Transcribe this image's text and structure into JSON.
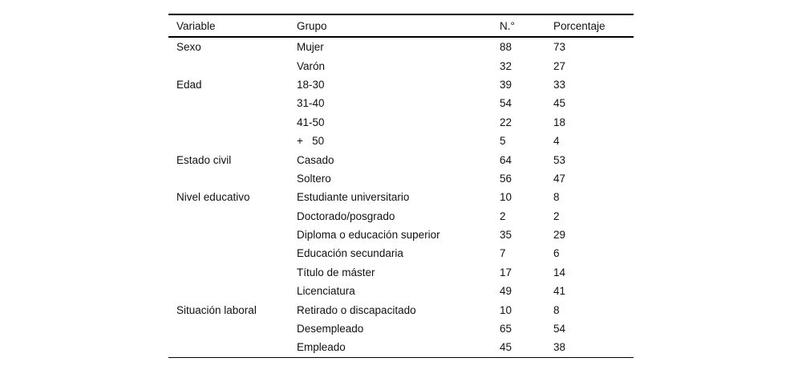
{
  "table": {
    "columns": [
      "Variable",
      "Grupo",
      "N.°",
      "Porcentaje"
    ],
    "column_keys": [
      "variable",
      "grupo",
      "n",
      "porcentaje"
    ],
    "rows": [
      [
        "Sexo",
        "Mujer",
        "88",
        "73"
      ],
      [
        "",
        "Varón",
        "32",
        "27"
      ],
      [
        "Edad",
        "18-30",
        "39",
        "33"
      ],
      [
        "",
        "31-40",
        "54",
        "45"
      ],
      [
        "",
        "41-50",
        "22",
        "18"
      ],
      [
        "",
        "+   50",
        "5",
        "4"
      ],
      [
        "Estado civil",
        "Casado",
        "64",
        "53"
      ],
      [
        "",
        "Soltero",
        "56",
        "47"
      ],
      [
        "Nivel educativo",
        "Estudiante universitario",
        "10",
        "8"
      ],
      [
        "",
        "Doctorado/posgrado",
        "2",
        "2"
      ],
      [
        "",
        "Diploma o educación superior",
        "35",
        "29"
      ],
      [
        "",
        "Educación secundaria",
        "7",
        "6"
      ],
      [
        "",
        "Título de máster",
        "17",
        "14"
      ],
      [
        "",
        "Licenciatura",
        "49",
        "41"
      ],
      [
        "Situación laboral",
        "Retirado o discapacitado",
        "10",
        "8"
      ],
      [
        "",
        "Desempleado",
        "65",
        "54"
      ],
      [
        "",
        "Empleado",
        "45",
        "38"
      ]
    ],
    "text_color": "#111111",
    "rule_color": "#000000"
  }
}
